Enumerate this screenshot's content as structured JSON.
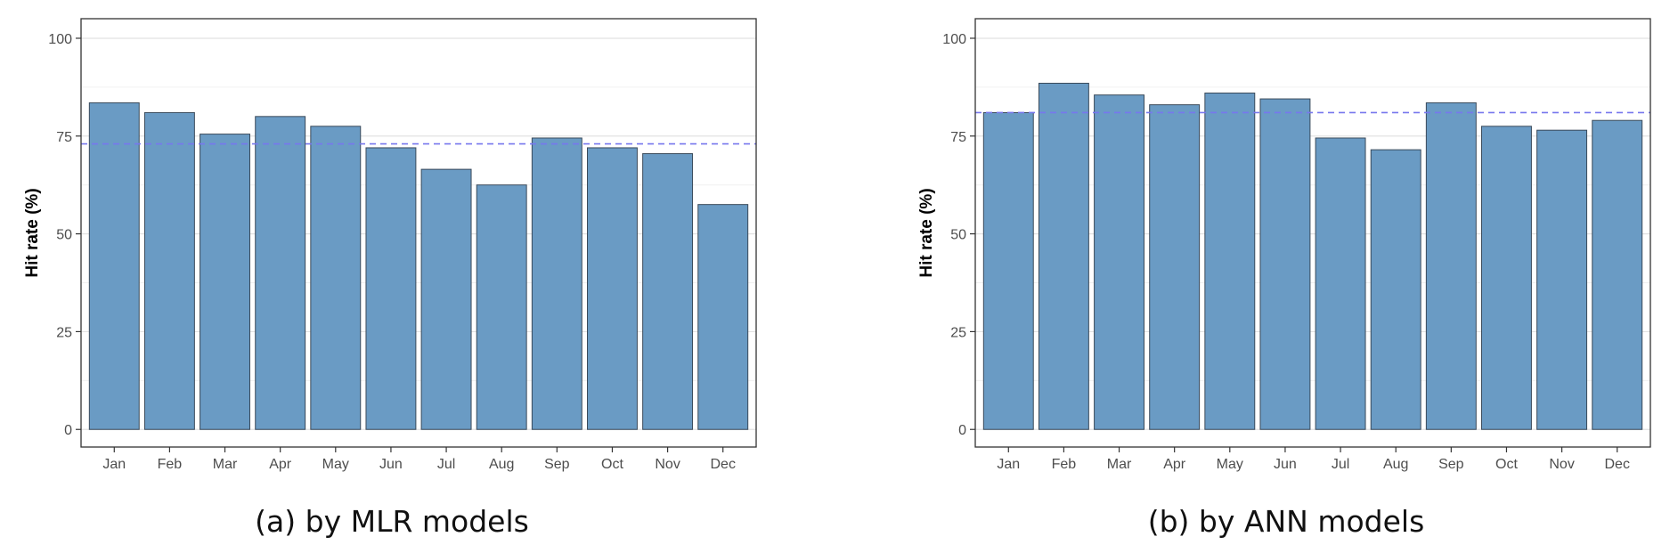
{
  "chart_data": [
    {
      "type": "bar",
      "categories": [
        "Jan",
        "Feb",
        "Mar",
        "Apr",
        "May",
        "Jun",
        "Jul",
        "Aug",
        "Sep",
        "Oct",
        "Nov",
        "Dec"
      ],
      "values": [
        83.5,
        81,
        75.5,
        80,
        77.5,
        72,
        66.5,
        62.5,
        74.5,
        72,
        70.5,
        57.5
      ],
      "reference_line": 73,
      "ylabel": "Hit rate (%)",
      "xlabel": "",
      "ylim": [
        -4.5,
        105
      ],
      "yticks": [
        0,
        25,
        50,
        75,
        100
      ],
      "caption": "(a) by MLR models",
      "grid": true,
      "colors": {
        "bar": "#6a9bc4",
        "bar_stroke": "#3a4a5a",
        "reference": "#7777ee"
      }
    },
    {
      "type": "bar",
      "categories": [
        "Jan",
        "Feb",
        "Mar",
        "Apr",
        "May",
        "Jun",
        "Jul",
        "Aug",
        "Sep",
        "Oct",
        "Nov",
        "Dec"
      ],
      "values": [
        81,
        88.5,
        85.5,
        83,
        86,
        84.5,
        74.5,
        71.5,
        83.5,
        77.5,
        76.5,
        79
      ],
      "reference_line": 81,
      "ylabel": "Hit rate (%)",
      "xlabel": "",
      "ylim": [
        -4.5,
        105
      ],
      "yticks": [
        0,
        25,
        50,
        75,
        100
      ],
      "caption": "(b) by ANN models",
      "grid": true,
      "colors": {
        "bar": "#6a9bc4",
        "bar_stroke": "#3a4a5a",
        "reference": "#7777ee"
      }
    }
  ]
}
